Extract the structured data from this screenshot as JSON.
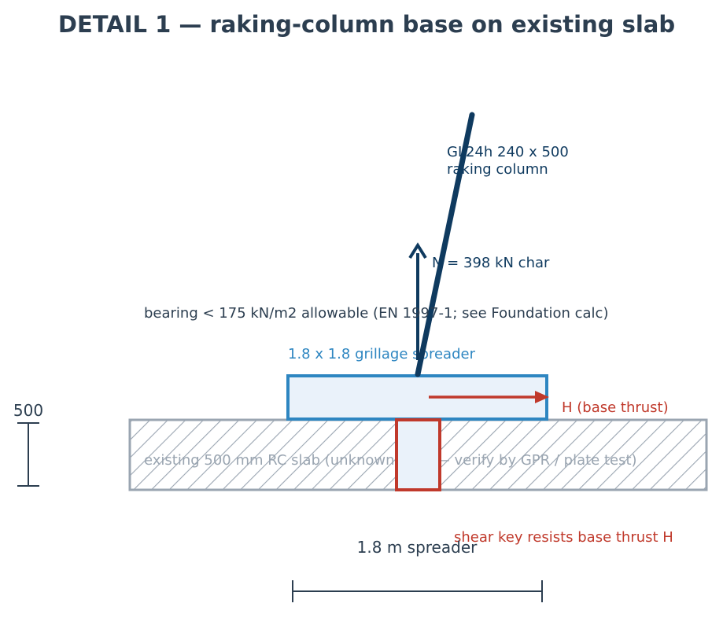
{
  "title": "DETAIL 1 — raking-column base on existing slab",
  "column": {
    "label_line1": "GL24h 240 x 500",
    "label_line2": "raking column"
  },
  "axial_load": {
    "label": "N = 398 kN char"
  },
  "bearing_note": "bearing < 175 kN/m2 allowable (EN 1997-1; see Foundation calc)",
  "spreader": {
    "label": "1.8 x 1.8 grillage spreader"
  },
  "base_thrust": {
    "label": "H (base thrust)"
  },
  "slab": {
    "label": "existing 500 mm RC slab (unknown reinf — verify by GPR / plate test)"
  },
  "shear_key": {
    "label": "shear key resists base thrust H"
  },
  "dimensions": {
    "slab_thickness": "500",
    "spreader_width": "1.8 m spreader"
  },
  "colors": {
    "navy": "#0f3a5f",
    "dark": "#2c3e50",
    "blue": "#2e86c1",
    "red": "#c0392b",
    "gray": "#9aa5b1",
    "spreader_fill": "#eaf2fa"
  }
}
